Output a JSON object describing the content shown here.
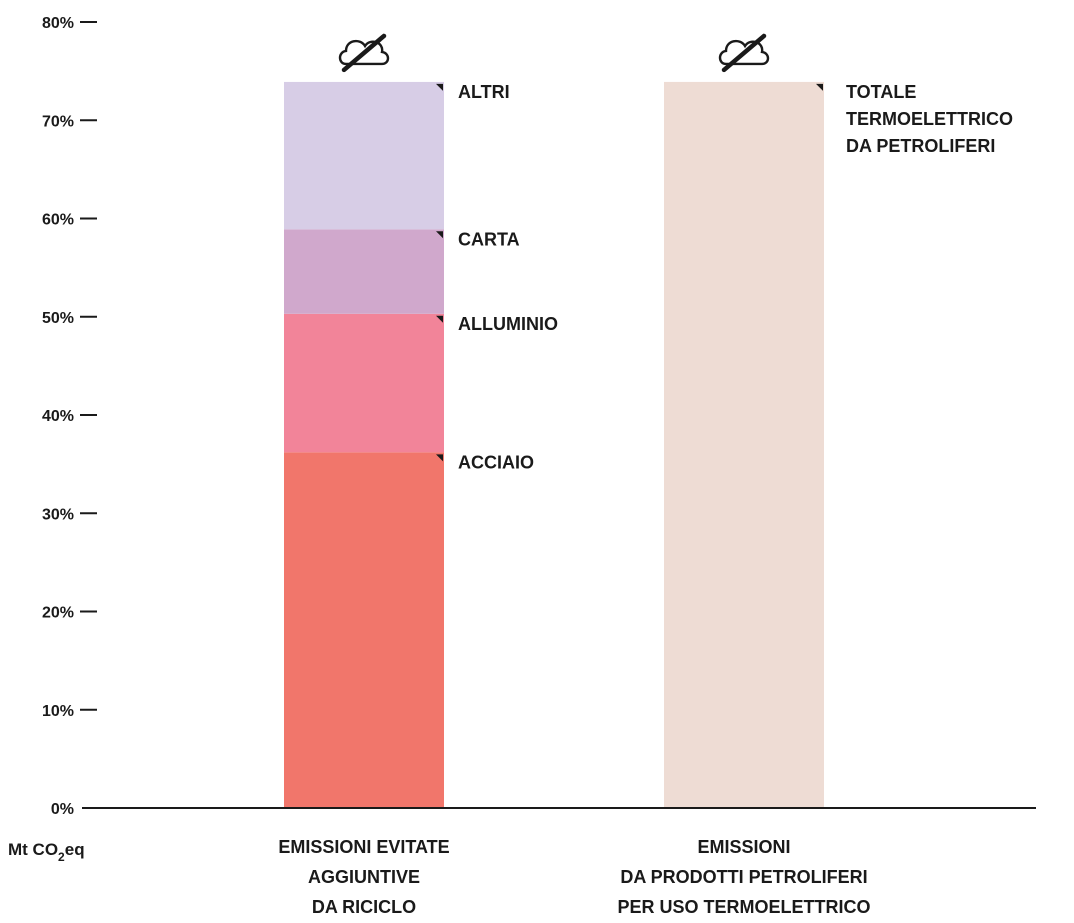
{
  "chart_data": {
    "type": "bar",
    "stacked": true,
    "ylim": [
      0,
      80
    ],
    "y_ticks": [
      "0%",
      "10%",
      "20%",
      "30%",
      "40%",
      "50%",
      "60%",
      "70%",
      "80%"
    ],
    "y_unit": {
      "main": "Mt CO",
      "sub": "2",
      "suffix": "eq"
    },
    "categories": [
      {
        "label_lines": [
          "EMISSIONI EVITATE",
          "AGGIUNTIVE",
          "DA RICICLO"
        ],
        "segments": [
          {
            "name": "ACCIAIO",
            "value": 36.2,
            "color": "#f1766b"
          },
          {
            "name": "ALLUMINIO",
            "value": 14.1,
            "color": "#f28499"
          },
          {
            "name": "CARTA",
            "value": 8.6,
            "color": "#d0a8cc"
          },
          {
            "name": "ALTRI",
            "value": 15.0,
            "color": "#d7cde6"
          }
        ]
      },
      {
        "label_lines": [
          "EMISSIONI",
          "DA PRODOTTI PETROLIFERI",
          "PER USO TERMOELETTRICO"
        ],
        "segments": [
          {
            "name_lines": [
              "TOTALE",
              "TERMOELETTRICO",
              "DA PETROLIFERI"
            ],
            "value": 73.9,
            "color": "#eedcd4"
          }
        ]
      }
    ],
    "grid": false,
    "icon": "crossed-out-cloud-icon"
  }
}
